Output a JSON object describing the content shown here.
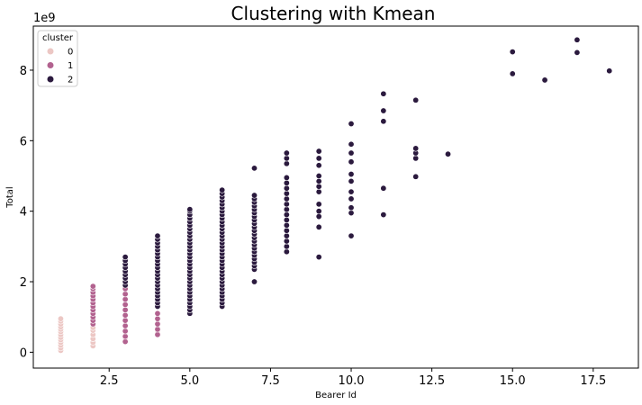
{
  "chart_data": {
    "type": "scatter",
    "title": "Clustering with Kmean",
    "xlabel": "Bearer Id",
    "ylabel": "Total",
    "y_offset_text": "1e9",
    "xlim": [
      0.15,
      18.9
    ],
    "ylim": [
      -0.45,
      9.25
    ],
    "x_ticks": [
      2.5,
      5.0,
      7.5,
      10.0,
      12.5,
      15.0,
      17.5
    ],
    "x_tick_labels": [
      "2.5",
      "5.0",
      "7.5",
      "10.0",
      "12.5",
      "15.0",
      "17.5"
    ],
    "y_ticks": [
      0,
      2,
      4,
      6,
      8
    ],
    "y_tick_labels": [
      "0",
      "2",
      "4",
      "6",
      "8"
    ],
    "grid": false,
    "legend": {
      "title": "cluster",
      "placement": "top-left",
      "entries": [
        "0",
        "1",
        "2"
      ]
    },
    "colors": {
      "0": "#ecc7c4",
      "1": "#b2628f",
      "2": "#2b1a3e"
    },
    "series": [
      {
        "name": "0",
        "points": [
          [
            1,
            0.05
          ],
          [
            1,
            0.12
          ],
          [
            1,
            0.2
          ],
          [
            1,
            0.28
          ],
          [
            1,
            0.35
          ],
          [
            1,
            0.42
          ],
          [
            1,
            0.5
          ],
          [
            1,
            0.58
          ],
          [
            1,
            0.65
          ],
          [
            1,
            0.72
          ],
          [
            1,
            0.8
          ],
          [
            1,
            0.88
          ],
          [
            1,
            0.95
          ],
          [
            2,
            0.18
          ],
          [
            2,
            0.28
          ],
          [
            2,
            0.38
          ],
          [
            2,
            0.5
          ],
          [
            2,
            0.62
          ],
          [
            2,
            0.7
          ],
          [
            3,
            0.35
          ],
          [
            3,
            0.48
          ],
          [
            3,
            0.62
          ],
          [
            4,
            0.55
          ],
          [
            4,
            0.68
          ]
        ]
      },
      {
        "name": "1",
        "points": [
          [
            2,
            0.8
          ],
          [
            2,
            0.9
          ],
          [
            2,
            1.0
          ],
          [
            2,
            1.1
          ],
          [
            2,
            1.2
          ],
          [
            2,
            1.3
          ],
          [
            2,
            1.4
          ],
          [
            2,
            1.5
          ],
          [
            2,
            1.6
          ],
          [
            2,
            1.7
          ],
          [
            2,
            1.8
          ],
          [
            2,
            1.87
          ],
          [
            3,
            0.3
          ],
          [
            3,
            0.45
          ],
          [
            3,
            0.6
          ],
          [
            3,
            0.75
          ],
          [
            3,
            0.9
          ],
          [
            3,
            1.05
          ],
          [
            3,
            1.2
          ],
          [
            3,
            1.35
          ],
          [
            3,
            1.5
          ],
          [
            3,
            1.65
          ],
          [
            3,
            1.8
          ],
          [
            4,
            0.5
          ],
          [
            4,
            0.65
          ],
          [
            4,
            0.8
          ],
          [
            4,
            0.95
          ],
          [
            4,
            1.1
          ]
        ]
      },
      {
        "name": "2",
        "points": [
          [
            3,
            1.9
          ],
          [
            3,
            2.0
          ],
          [
            3,
            2.1
          ],
          [
            3,
            2.2
          ],
          [
            3,
            2.3
          ],
          [
            3,
            2.4
          ],
          [
            3,
            2.5
          ],
          [
            3,
            2.6
          ],
          [
            3,
            2.7
          ],
          [
            4,
            1.3
          ],
          [
            4,
            1.4
          ],
          [
            4,
            1.5
          ],
          [
            4,
            1.6
          ],
          [
            4,
            1.7
          ],
          [
            4,
            1.8
          ],
          [
            4,
            1.9
          ],
          [
            4,
            2.0
          ],
          [
            4,
            2.1
          ],
          [
            4,
            2.2
          ],
          [
            4,
            2.3
          ],
          [
            4,
            2.4
          ],
          [
            4,
            2.5
          ],
          [
            4,
            2.6
          ],
          [
            4,
            2.7
          ],
          [
            4,
            2.8
          ],
          [
            4,
            2.9
          ],
          [
            4,
            3.0
          ],
          [
            4,
            3.1
          ],
          [
            4,
            3.2
          ],
          [
            4,
            3.3
          ],
          [
            5,
            1.1
          ],
          [
            5,
            1.2
          ],
          [
            5,
            1.3
          ],
          [
            5,
            1.4
          ],
          [
            5,
            1.5
          ],
          [
            5,
            1.6
          ],
          [
            5,
            1.7
          ],
          [
            5,
            1.8
          ],
          [
            5,
            1.9
          ],
          [
            5,
            2.0
          ],
          [
            5,
            2.1
          ],
          [
            5,
            2.2
          ],
          [
            5,
            2.3
          ],
          [
            5,
            2.4
          ],
          [
            5,
            2.5
          ],
          [
            5,
            2.6
          ],
          [
            5,
            2.7
          ],
          [
            5,
            2.8
          ],
          [
            5,
            2.9
          ],
          [
            5,
            3.0
          ],
          [
            5,
            3.1
          ],
          [
            5,
            3.2
          ],
          [
            5,
            3.3
          ],
          [
            5,
            3.4
          ],
          [
            5,
            3.5
          ],
          [
            5,
            3.6
          ],
          [
            5,
            3.7
          ],
          [
            5,
            3.8
          ],
          [
            5,
            3.9
          ],
          [
            5,
            4.0
          ],
          [
            5,
            4.05
          ],
          [
            6,
            1.3
          ],
          [
            6,
            1.4
          ],
          [
            6,
            1.5
          ],
          [
            6,
            1.6
          ],
          [
            6,
            1.7
          ],
          [
            6,
            1.8
          ],
          [
            6,
            1.9
          ],
          [
            6,
            2.0
          ],
          [
            6,
            2.1
          ],
          [
            6,
            2.2
          ],
          [
            6,
            2.3
          ],
          [
            6,
            2.4
          ],
          [
            6,
            2.5
          ],
          [
            6,
            2.6
          ],
          [
            6,
            2.7
          ],
          [
            6,
            2.8
          ],
          [
            6,
            2.9
          ],
          [
            6,
            3.0
          ],
          [
            6,
            3.1
          ],
          [
            6,
            3.2
          ],
          [
            6,
            3.3
          ],
          [
            6,
            3.4
          ],
          [
            6,
            3.5
          ],
          [
            6,
            3.6
          ],
          [
            6,
            3.7
          ],
          [
            6,
            3.8
          ],
          [
            6,
            3.9
          ],
          [
            6,
            4.0
          ],
          [
            6,
            4.1
          ],
          [
            6,
            4.2
          ],
          [
            6,
            4.3
          ],
          [
            6,
            4.4
          ],
          [
            6,
            4.5
          ],
          [
            6,
            4.6
          ],
          [
            7,
            2.0
          ],
          [
            7,
            2.35
          ],
          [
            7,
            2.45
          ],
          [
            7,
            2.55
          ],
          [
            7,
            2.65
          ],
          [
            7,
            2.75
          ],
          [
            7,
            2.85
          ],
          [
            7,
            2.95
          ],
          [
            7,
            3.05
          ],
          [
            7,
            3.15
          ],
          [
            7,
            3.25
          ],
          [
            7,
            3.35
          ],
          [
            7,
            3.45
          ],
          [
            7,
            3.55
          ],
          [
            7,
            3.65
          ],
          [
            7,
            3.75
          ],
          [
            7,
            3.85
          ],
          [
            7,
            3.95
          ],
          [
            7,
            4.05
          ],
          [
            7,
            4.15
          ],
          [
            7,
            4.25
          ],
          [
            7,
            4.35
          ],
          [
            7,
            4.45
          ],
          [
            7,
            5.22
          ],
          [
            8,
            2.85
          ],
          [
            8,
            3.0
          ],
          [
            8,
            3.15
          ],
          [
            8,
            3.3
          ],
          [
            8,
            3.45
          ],
          [
            8,
            3.6
          ],
          [
            8,
            3.75
          ],
          [
            8,
            3.9
          ],
          [
            8,
            4.05
          ],
          [
            8,
            4.2
          ],
          [
            8,
            4.35
          ],
          [
            8,
            4.5
          ],
          [
            8,
            4.65
          ],
          [
            8,
            4.8
          ],
          [
            8,
            4.95
          ],
          [
            8,
            5.35
          ],
          [
            8,
            5.5
          ],
          [
            8,
            5.65
          ],
          [
            9,
            2.7
          ],
          [
            9,
            3.55
          ],
          [
            9,
            3.85
          ],
          [
            9,
            4.0
          ],
          [
            9,
            4.2
          ],
          [
            9,
            4.55
          ],
          [
            9,
            4.7
          ],
          [
            9,
            4.85
          ],
          [
            9,
            5.0
          ],
          [
            9,
            5.3
          ],
          [
            9,
            5.5
          ],
          [
            9,
            5.7
          ],
          [
            10,
            3.3
          ],
          [
            10,
            3.95
          ],
          [
            10,
            4.1
          ],
          [
            10,
            4.35
          ],
          [
            10,
            4.55
          ],
          [
            10,
            4.85
          ],
          [
            10,
            5.05
          ],
          [
            10,
            5.4
          ],
          [
            10,
            5.65
          ],
          [
            10,
            5.9
          ],
          [
            10,
            6.48
          ],
          [
            11,
            3.9
          ],
          [
            11,
            4.65
          ],
          [
            11,
            6.55
          ],
          [
            11,
            6.85
          ],
          [
            11,
            7.33
          ],
          [
            12,
            4.98
          ],
          [
            12,
            5.5
          ],
          [
            12,
            5.65
          ],
          [
            12,
            5.78
          ],
          [
            12,
            7.15
          ],
          [
            13,
            5.62
          ],
          [
            15,
            7.9
          ],
          [
            15,
            8.52
          ],
          [
            16,
            7.72
          ],
          [
            17,
            8.5
          ],
          [
            17,
            8.86
          ],
          [
            18,
            7.98
          ]
        ]
      }
    ]
  }
}
